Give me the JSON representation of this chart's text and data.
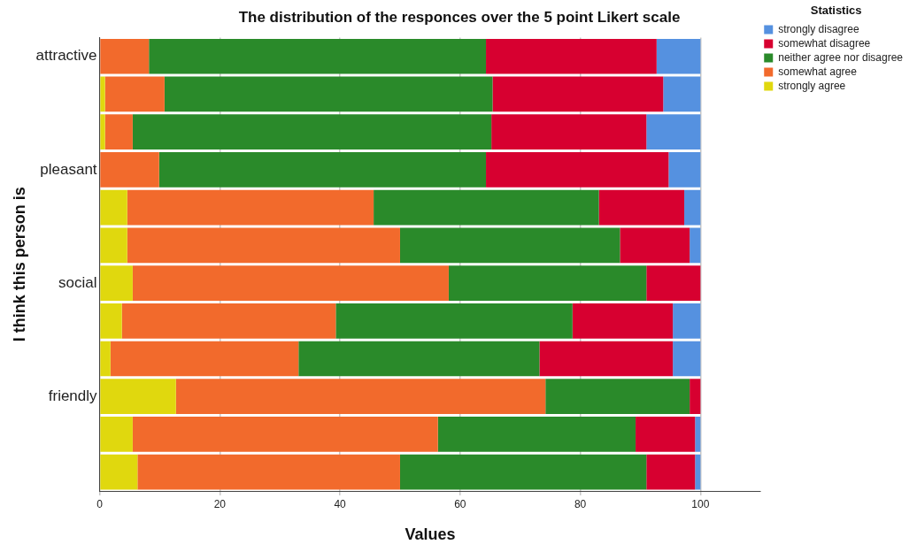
{
  "chart_data": {
    "type": "bar",
    "orientation": "horizontal",
    "stacked": true,
    "title": "The distribution of the responces over the 5 point Likert scale",
    "xlabel": "Values",
    "ylabel": "I think this person is",
    "legend_title": "Statistics",
    "legend": "top right",
    "grid": "x",
    "categories": [
      "attractive",
      null,
      null,
      "pleasant",
      null,
      null,
      "social",
      null,
      null,
      "friendly",
      null,
      null
    ],
    "xlim": [
      0,
      110
    ],
    "xticks": [
      0,
      20,
      40,
      60,
      80,
      100
    ],
    "series": [
      {
        "name": "strongly agree",
        "color": "#e0d80e",
        "values": [
          0,
          0.9,
          0.9,
          0,
          4.6,
          4.6,
          5.5,
          3.7,
          1.8,
          12.7,
          5.5,
          6.3
        ]
      },
      {
        "name": "somewhat agree",
        "color": "#f26a2c",
        "values": [
          8.2,
          9.9,
          4.6,
          9.9,
          41.0,
          45.4,
          52.6,
          35.6,
          31.3,
          61.5,
          50.8,
          43.7
        ]
      },
      {
        "name": "neither agree nor disagree",
        "color": "#2a8a2a",
        "values": [
          56.1,
          54.6,
          59.7,
          54.4,
          37.5,
          36.6,
          32.9,
          39.4,
          40.1,
          24.0,
          32.9,
          41.0
        ]
      },
      {
        "name": "somewhat disagree",
        "color": "#d70030",
        "values": [
          28.4,
          28.4,
          25.8,
          30.4,
          14.2,
          11.6,
          9.0,
          16.7,
          22.2,
          1.8,
          9.9,
          8.1
        ]
      },
      {
        "name": "strongly disagree",
        "color": "#5591e0",
        "values": [
          7.3,
          6.2,
          9.0,
          5.3,
          2.7,
          1.8,
          0,
          4.6,
          4.6,
          0,
          0.9,
          0.9
        ]
      }
    ]
  }
}
